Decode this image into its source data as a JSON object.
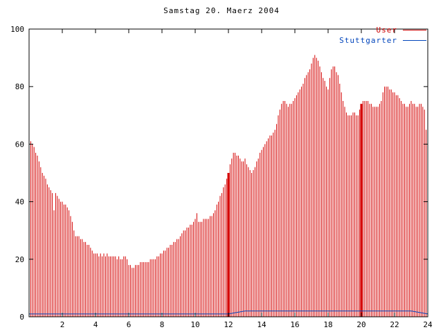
{
  "chart_data": {
    "type": "bar",
    "title": "Samstag 20. Maerz 2004",
    "xlabel": "",
    "ylabel": "",
    "xlim": [
      0,
      24
    ],
    "ylim": [
      0,
      100
    ],
    "x_ticks": [
      2,
      4,
      6,
      8,
      10,
      12,
      14,
      16,
      18,
      20,
      22,
      24
    ],
    "y_ticks": [
      0,
      20,
      40,
      60,
      80,
      100
    ],
    "grid": false,
    "legend_position": "top-right",
    "highlight_x": [
      12,
      20
    ],
    "legend": [
      {
        "name": "User",
        "color": "#cc0000"
      },
      {
        "name": "Stuttgarter",
        "color": "#0044bb"
      }
    ],
    "series": [
      {
        "name": "User",
        "type": "impulses",
        "color": "#d40000",
        "x_start": 0,
        "x_step": 0.1,
        "values": [
          63,
          61,
          60,
          59,
          57,
          56,
          54,
          52,
          50,
          49,
          48,
          46,
          45,
          44,
          43,
          37,
          43,
          42,
          41,
          40,
          40,
          39,
          39,
          38,
          37,
          35,
          33,
          30,
          28,
          28,
          28,
          27,
          27,
          26,
          26,
          25,
          25,
          24,
          23,
          22,
          22,
          22,
          21,
          22,
          21,
          22,
          21,
          22,
          21,
          21,
          21,
          21,
          21,
          20,
          21,
          20,
          20,
          21,
          21,
          20,
          18,
          18,
          17,
          17,
          18,
          18,
          18,
          19,
          19,
          19,
          19,
          19,
          19,
          20,
          20,
          20,
          20,
          21,
          21,
          22,
          22,
          23,
          23,
          24,
          24,
          25,
          25,
          26,
          26,
          27,
          27,
          28,
          29,
          30,
          30,
          31,
          31,
          32,
          32,
          33,
          34,
          36,
          33,
          33,
          33,
          34,
          34,
          34,
          34,
          35,
          35,
          36,
          37,
          39,
          40,
          42,
          43,
          45,
          46,
          48,
          50,
          53,
          55,
          57,
          57,
          56,
          56,
          55,
          54,
          54,
          55,
          53,
          52,
          51,
          50,
          51,
          52,
          54,
          55,
          57,
          58,
          59,
          60,
          61,
          62,
          63,
          63,
          64,
          65,
          67,
          70,
          72,
          74,
          75,
          75,
          74,
          73,
          74,
          74,
          75,
          76,
          77,
          78,
          79,
          80,
          81,
          83,
          84,
          85,
          86,
          88,
          90,
          91,
          90,
          89,
          87,
          85,
          83,
          82,
          80,
          79,
          83,
          86,
          87,
          87,
          85,
          84,
          81,
          78,
          75,
          73,
          71,
          70,
          70,
          70,
          71,
          71,
          70,
          70,
          72,
          74,
          75,
          75,
          75,
          75,
          74,
          74,
          73,
          73,
          73,
          73,
          74,
          75,
          78,
          80,
          80,
          80,
          79,
          79,
          78,
          78,
          77,
          77,
          76,
          75,
          74,
          74,
          73,
          73,
          74,
          75,
          74,
          74,
          73,
          73,
          74,
          74,
          73,
          72,
          65,
          60
        ]
      },
      {
        "name": "Stuttgarter",
        "type": "line",
        "color": "#0044bb",
        "x_start": 0,
        "x_step": 1,
        "values": [
          1,
          1,
          1,
          1,
          1,
          1,
          1,
          1,
          1,
          1,
          1,
          1,
          1,
          2,
          2,
          2,
          2,
          2,
          2,
          2,
          2,
          2,
          2,
          2,
          1
        ]
      }
    ]
  }
}
